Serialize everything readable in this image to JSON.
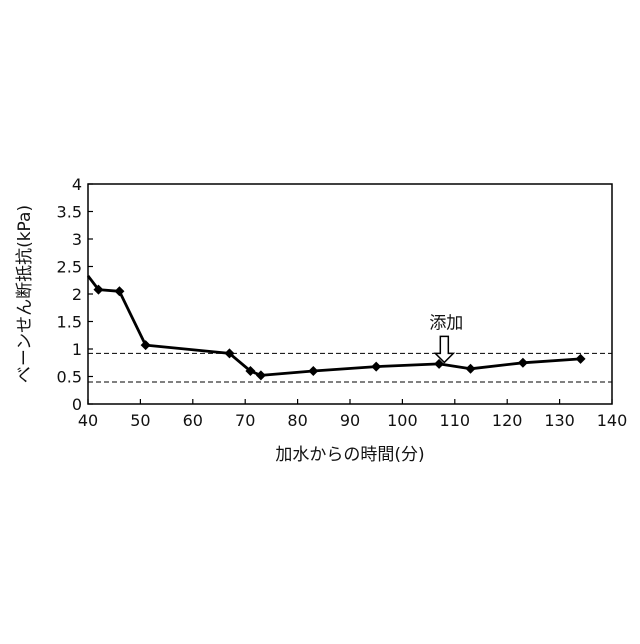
{
  "chart_data": {
    "type": "line",
    "xlabel": "加水からの時間(分)",
    "ylabel": "ベーンせん断抵抗(kPa)",
    "xlim": [
      40,
      140
    ],
    "ylim": [
      0,
      4
    ],
    "xticks": [
      40,
      50,
      60,
      70,
      80,
      90,
      100,
      110,
      120,
      130,
      140
    ],
    "yticks": [
      0,
      0.5,
      1,
      1.5,
      2,
      2.5,
      3,
      3.5,
      4
    ],
    "xtick_labels": [
      "40",
      "50",
      "60",
      "70",
      "80",
      "90",
      "100",
      "110",
      "120",
      "130",
      "140"
    ],
    "ytick_labels": [
      "0",
      "0.5",
      "1",
      "1.5",
      "2",
      "2.5",
      "3",
      "3.5",
      "4"
    ],
    "grid": false,
    "series": [
      {
        "x": [
          40,
          42,
          46,
          51,
          67,
          71,
          73,
          83,
          95,
          107,
          113,
          123,
          134
        ],
        "y": [
          2.33,
          2.08,
          2.05,
          1.07,
          0.92,
          0.6,
          0.52,
          0.6,
          0.68,
          0.73,
          0.64,
          0.75,
          0.82
        ],
        "marker_first": false
      }
    ],
    "reference_lines": [
      {
        "y": 0.92,
        "style": "dashed"
      },
      {
        "y": 0.4,
        "style": "dashed"
      }
    ],
    "annotations": [
      {
        "text": "添加",
        "x": 108,
        "y": 0.92,
        "arrow": "down"
      }
    ],
    "colors": {
      "line": "#000000",
      "axis": "#000000",
      "reference": "#000000"
    }
  }
}
